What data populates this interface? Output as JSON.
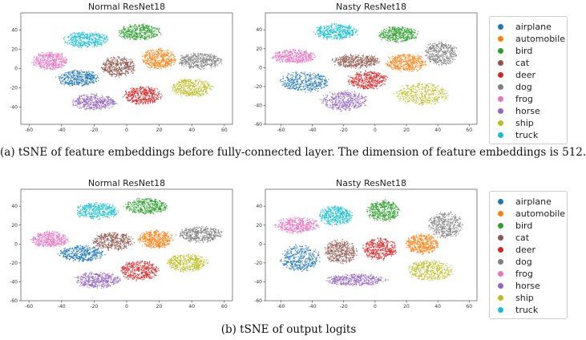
{
  "classes": [
    "airplane",
    "automobile",
    "bird",
    "cat",
    "deer",
    "dog",
    "frog",
    "horse",
    "ship",
    "truck"
  ],
  "colors": [
    "#1f77b4",
    "#ff7f0e",
    "#2ca02c",
    "#8c564b",
    "#d62728",
    "#7f7f7f",
    "#e377c2",
    "#9467bd",
    "#bcbd22",
    "#17becf"
  ],
  "figure": {
    "caption_a": "(a) tSNE of feature embeddings before fully-connected layer. The dimension of feature embeddings is 512.",
    "caption_b": "(b) tSNE of output logits"
  },
  "chart_data": [
    {
      "type": "scatter",
      "title": "Normal ResNet18",
      "xlim": [
        -65,
        65
      ],
      "ylim": [
        -58,
        58
      ],
      "xticks": [
        -60,
        -40,
        -20,
        0,
        20,
        40,
        60
      ],
      "yticks": [
        -60,
        -40,
        -20,
        0,
        20,
        40
      ],
      "clusters": [
        {
          "class": "airplane",
          "center": [
            -30,
            -10
          ],
          "spread": [
            12,
            8
          ]
        },
        {
          "class": "automobile",
          "center": [
            20,
            10
          ],
          "spread": [
            10,
            10
          ]
        },
        {
          "class": "bird",
          "center": [
            8,
            38
          ],
          "spread": [
            13,
            8
          ]
        },
        {
          "class": "cat",
          "center": [
            -5,
            2
          ],
          "spread": [
            10,
            10
          ]
        },
        {
          "class": "deer",
          "center": [
            10,
            -28
          ],
          "spread": [
            11,
            9
          ]
        },
        {
          "class": "dog",
          "center": [
            45,
            8
          ],
          "spread": [
            13,
            8
          ]
        },
        {
          "class": "frog",
          "center": [
            -47,
            8
          ],
          "spread": [
            10,
            9
          ]
        },
        {
          "class": "horse",
          "center": [
            -20,
            -35
          ],
          "spread": [
            13,
            8
          ]
        },
        {
          "class": "ship",
          "center": [
            40,
            -20
          ],
          "spread": [
            12,
            9
          ]
        },
        {
          "class": "truck",
          "center": [
            -25,
            30
          ],
          "spread": [
            13,
            8
          ]
        }
      ]
    },
    {
      "type": "scatter",
      "title": "Nasty ResNet18",
      "xlim": [
        -70,
        65
      ],
      "ylim": [
        -60,
        58
      ],
      "xticks": [
        -60,
        -40,
        -20,
        0,
        20,
        40,
        60
      ],
      "yticks": [
        -60,
        -40,
        -20,
        0,
        20,
        40
      ],
      "clusters": [
        {
          "class": "airplane",
          "center": [
            -45,
            -15
          ],
          "spread": [
            15,
            10
          ]
        },
        {
          "class": "automobile",
          "center": [
            20,
            5
          ],
          "spread": [
            12,
            9
          ]
        },
        {
          "class": "bird",
          "center": [
            15,
            35
          ],
          "spread": [
            12,
            8
          ]
        },
        {
          "class": "cat",
          "center": [
            -12,
            7
          ],
          "spread": [
            14,
            7
          ]
        },
        {
          "class": "deer",
          "center": [
            -5,
            -13
          ],
          "spread": [
            12,
            9
          ]
        },
        {
          "class": "dog",
          "center": [
            42,
            15
          ],
          "spread": [
            10,
            12
          ]
        },
        {
          "class": "frog",
          "center": [
            -52,
            12
          ],
          "spread": [
            13,
            7
          ]
        },
        {
          "class": "horse",
          "center": [
            -20,
            -35
          ],
          "spread": [
            14,
            10
          ]
        },
        {
          "class": "ship",
          "center": [
            30,
            -28
          ],
          "spread": [
            16,
            11
          ]
        },
        {
          "class": "truck",
          "center": [
            -25,
            38
          ],
          "spread": [
            13,
            8
          ]
        }
      ]
    },
    {
      "type": "scatter",
      "title": "Normal ResNet18",
      "xlim": [
        -65,
        65
      ],
      "ylim": [
        -60,
        58
      ],
      "xticks": [
        -60,
        -40,
        -20,
        0,
        20,
        40,
        60
      ],
      "yticks": [
        -60,
        -40,
        -20,
        0,
        20,
        40
      ],
      "clusters": [
        {
          "class": "airplane",
          "center": [
            -28,
            -10
          ],
          "spread": [
            13,
            8
          ]
        },
        {
          "class": "automobile",
          "center": [
            18,
            5
          ],
          "spread": [
            10,
            9
          ]
        },
        {
          "class": "bird",
          "center": [
            12,
            40
          ],
          "spread": [
            13,
            8
          ]
        },
        {
          "class": "cat",
          "center": [
            -8,
            3
          ],
          "spread": [
            12,
            9
          ]
        },
        {
          "class": "deer",
          "center": [
            8,
            -28
          ],
          "spread": [
            11,
            10
          ]
        },
        {
          "class": "dog",
          "center": [
            45,
            10
          ],
          "spread": [
            13,
            8
          ]
        },
        {
          "class": "frog",
          "center": [
            -47,
            5
          ],
          "spread": [
            11,
            8
          ]
        },
        {
          "class": "horse",
          "center": [
            -18,
            -38
          ],
          "spread": [
            13,
            8
          ]
        },
        {
          "class": "ship",
          "center": [
            37,
            -20
          ],
          "spread": [
            12,
            9
          ]
        },
        {
          "class": "truck",
          "center": [
            -18,
            35
          ],
          "spread": [
            13,
            8
          ]
        }
      ]
    },
    {
      "type": "scatter",
      "title": "Nasty ResNet18",
      "xlim": [
        -70,
        65
      ],
      "ylim": [
        -60,
        58
      ],
      "xticks": [
        -60,
        -40,
        -20,
        0,
        20,
        40,
        60
      ],
      "yticks": [
        -60,
        -40,
        -20,
        0,
        20,
        40
      ],
      "clusters": [
        {
          "class": "airplane",
          "center": [
            -48,
            -15
          ],
          "spread": [
            12,
            13
          ]
        },
        {
          "class": "automobile",
          "center": [
            30,
            0
          ],
          "spread": [
            10,
            10
          ]
        },
        {
          "class": "bird",
          "center": [
            5,
            35
          ],
          "spread": [
            10,
            11
          ]
        },
        {
          "class": "cat",
          "center": [
            -22,
            -8
          ],
          "spread": [
            10,
            12
          ]
        },
        {
          "class": "deer",
          "center": [
            3,
            -5
          ],
          "spread": [
            10,
            11
          ]
        },
        {
          "class": "dog",
          "center": [
            45,
            20
          ],
          "spread": [
            10,
            13
          ]
        },
        {
          "class": "frog",
          "center": [
            -50,
            20
          ],
          "spread": [
            13,
            8
          ]
        },
        {
          "class": "horse",
          "center": [
            -12,
            -38
          ],
          "spread": [
            18,
            6
          ]
        },
        {
          "class": "ship",
          "center": [
            35,
            -28
          ],
          "spread": [
            14,
            10
          ]
        },
        {
          "class": "truck",
          "center": [
            -25,
            30
          ],
          "spread": [
            10,
            10
          ]
        }
      ]
    }
  ]
}
